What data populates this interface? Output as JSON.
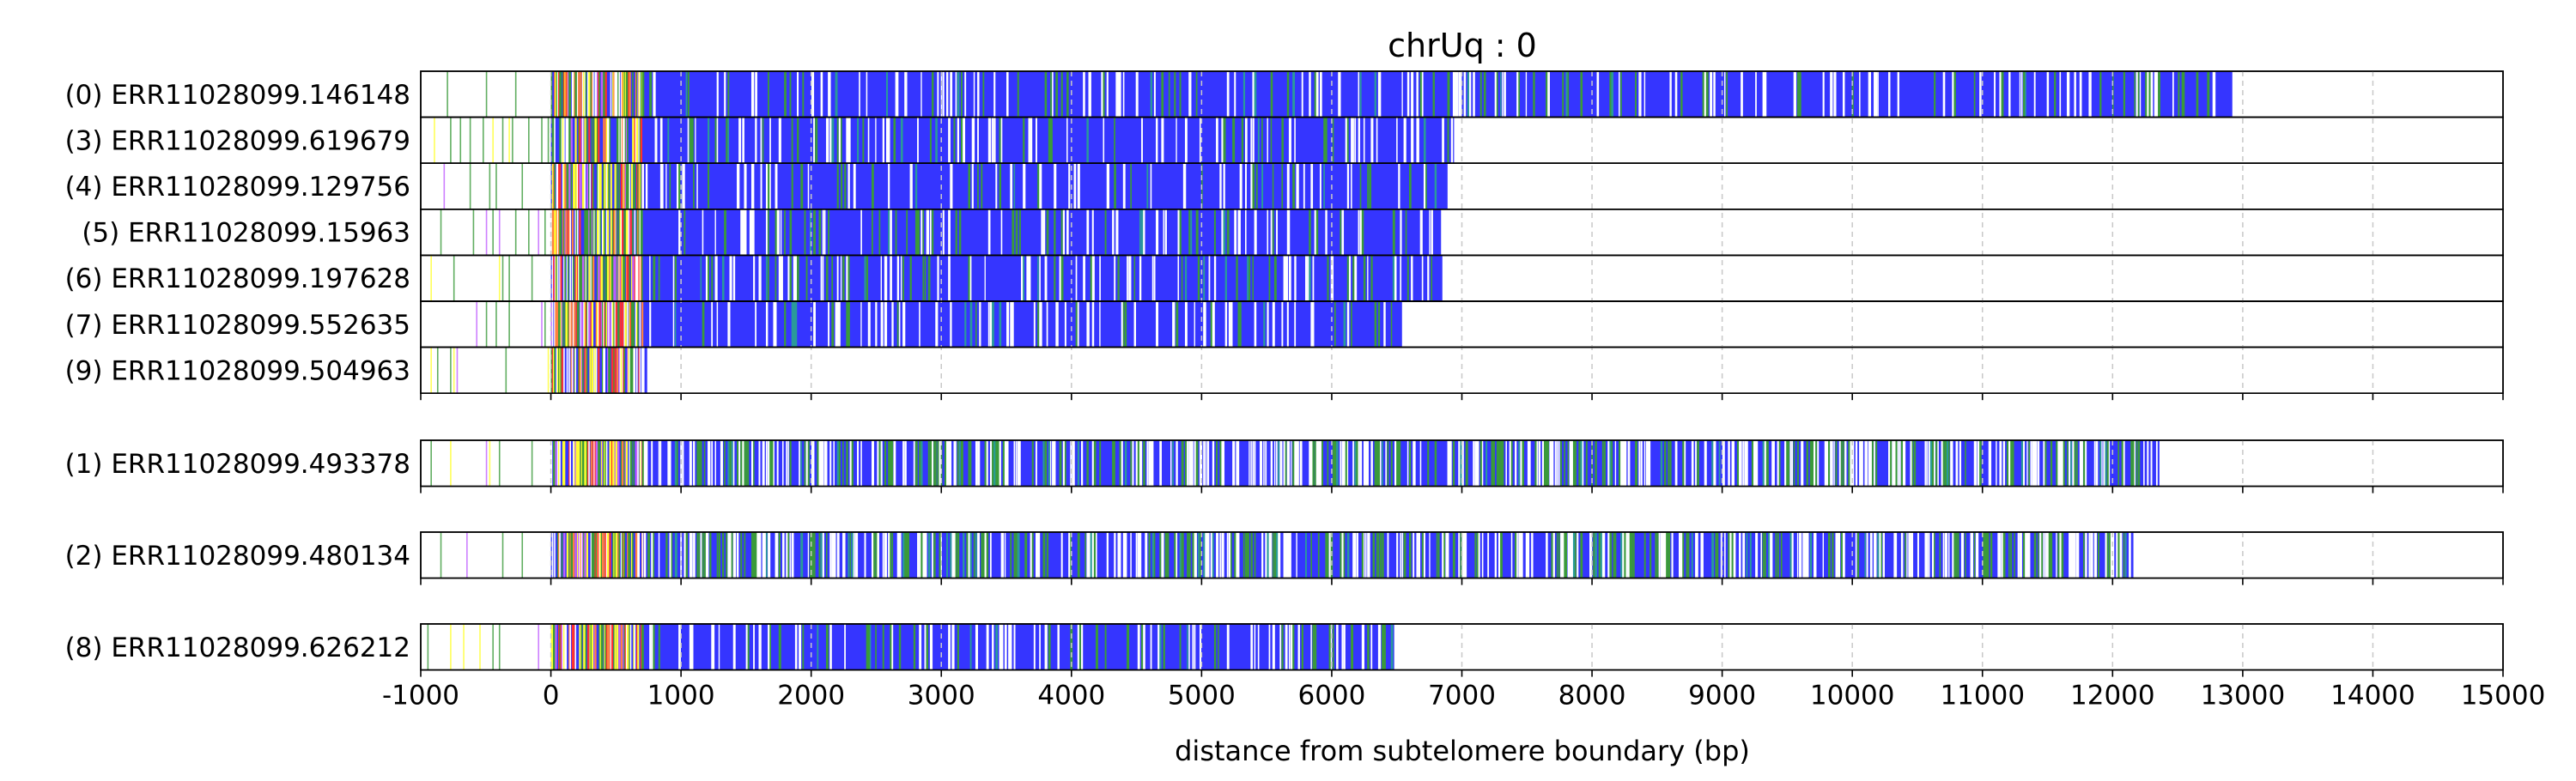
{
  "chart_data": {
    "type": "track",
    "title": "chrUq : 0",
    "xlabel": "distance from subtelomere boundary (bp)",
    "ylabel": "",
    "xlim": [
      -1000,
      15000
    ],
    "xticks": [
      "-1000",
      "0",
      "1000",
      "2000",
      "3000",
      "4000",
      "5000",
      "6000",
      "7000",
      "8000",
      "9000",
      "10000",
      "11000",
      "12000",
      "13000",
      "14000",
      "15000"
    ],
    "grid": "x-dashed",
    "colors": {
      "repeat": "#3535ff",
      "gap": "#ffffff",
      "variant_green": "#3a9a3a",
      "variant_teal": "#2a9a9a",
      "variant_yellow": "#ffff30",
      "variant_red": "#ff3030",
      "variant_orange": "#ff8040",
      "variant_purple": "#c060ff",
      "grid": "#c8c8c8",
      "frame": "#000000"
    },
    "groups": [
      {
        "reads": [
          {
            "label": "(0) ERR11028099.146148",
            "start": -1000,
            "end": 12920
          },
          {
            "label": "(3) ERR11028099.619679",
            "start": -1000,
            "end": 6940
          },
          {
            "label": "(4) ERR11028099.129756",
            "start": -1000,
            "end": 6890
          },
          {
            "label": "(5) ERR11028099.15963",
            "start": -1000,
            "end": 6840
          },
          {
            "label": "(6) ERR11028099.197628",
            "start": -1000,
            "end": 6850
          },
          {
            "label": "(7) ERR11028099.552635",
            "start": -1000,
            "end": 6540
          },
          {
            "label": "(9) ERR11028099.504963",
            "start": -1000,
            "end": 740
          }
        ]
      },
      {
        "reads": [
          {
            "label": "(1) ERR11028099.493378",
            "start": -1000,
            "end": 12360
          }
        ]
      },
      {
        "reads": [
          {
            "label": "(2) ERR11028099.480134",
            "start": -1000,
            "end": 12160
          }
        ]
      },
      {
        "reads": [
          {
            "label": "(8) ERR11028099.626212",
            "start": -1000,
            "end": 6480
          }
        ]
      }
    ]
  }
}
